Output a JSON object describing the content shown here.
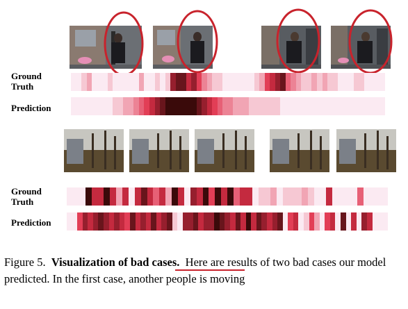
{
  "figure": {
    "panel1": {
      "row_labels": {
        "ground_truth": [
          "Ground",
          "Truth"
        ],
        "prediction": "Prediction"
      },
      "ground_truth_heat": [
        1,
        1,
        2,
        3,
        1,
        1,
        1,
        2,
        1,
        1,
        1,
        1,
        1,
        3,
        1,
        1,
        2,
        1,
        2,
        8,
        9,
        9,
        7,
        8,
        6,
        4,
        3,
        2,
        2,
        1,
        1,
        1,
        1,
        1,
        1,
        2,
        3,
        6,
        7,
        8,
        9,
        5,
        4,
        3,
        2,
        2,
        3,
        2,
        3,
        2,
        2,
        1,
        1,
        1,
        2,
        2,
        1,
        1,
        1,
        1
      ],
      "prediction_heat": [
        1,
        1,
        1,
        1,
        1,
        1,
        1,
        1,
        2,
        2,
        3,
        3,
        4,
        5,
        6,
        7,
        8,
        9,
        10,
        10,
        10,
        10,
        10,
        10,
        9,
        8,
        7,
        6,
        5,
        4,
        4,
        3,
        3,
        3,
        2,
        2,
        2,
        2,
        2,
        2,
        1,
        1,
        1,
        1,
        1,
        1,
        1,
        1,
        1,
        1,
        1,
        1,
        1,
        1,
        1,
        1,
        1,
        1,
        1,
        1
      ],
      "frames": 4
    },
    "panel2": {
      "row_labels": {
        "ground_truth": [
          "Ground",
          "Truth"
        ],
        "prediction": "Prediction"
      },
      "ground_truth_heat": [
        1,
        1,
        1,
        10,
        7,
        7,
        10,
        7,
        3,
        7,
        1,
        7,
        9,
        7,
        5,
        7,
        3,
        10,
        7,
        1,
        8,
        7,
        10,
        6,
        10,
        7,
        10,
        5,
        7,
        7,
        1,
        2,
        2,
        3,
        1,
        2,
        2,
        2,
        3,
        2,
        1,
        1,
        7,
        1,
        1,
        1,
        1,
        5,
        1,
        1,
        1,
        1
      ],
      "prediction_heat": [
        1,
        1,
        6,
        8,
        7,
        8,
        9,
        8,
        7,
        8,
        7,
        6,
        9,
        7,
        8,
        7,
        9,
        7,
        8,
        9,
        2,
        1,
        8,
        8,
        9,
        7,
        8,
        8,
        10,
        9,
        8,
        7,
        9,
        7,
        10,
        7,
        9,
        8,
        7,
        8,
        9,
        1,
        6,
        7,
        1,
        2,
        6,
        3,
        1,
        6,
        7,
        1,
        9,
        1,
        7,
        1,
        8,
        7,
        1,
        1,
        1
      ],
      "frames": 5
    },
    "caption": {
      "prefix": "Figure 5.",
      "bold": "Visualization of bad cases.",
      "body": "Here are results of two bad cases our model predicted. In the first case, another people is moving"
    },
    "colors": {
      "heat_low": "#fbeaf2",
      "heat_mid": "#e0304a",
      "heat_high": "#3a0a0a",
      "circle": "#c8232c"
    }
  }
}
